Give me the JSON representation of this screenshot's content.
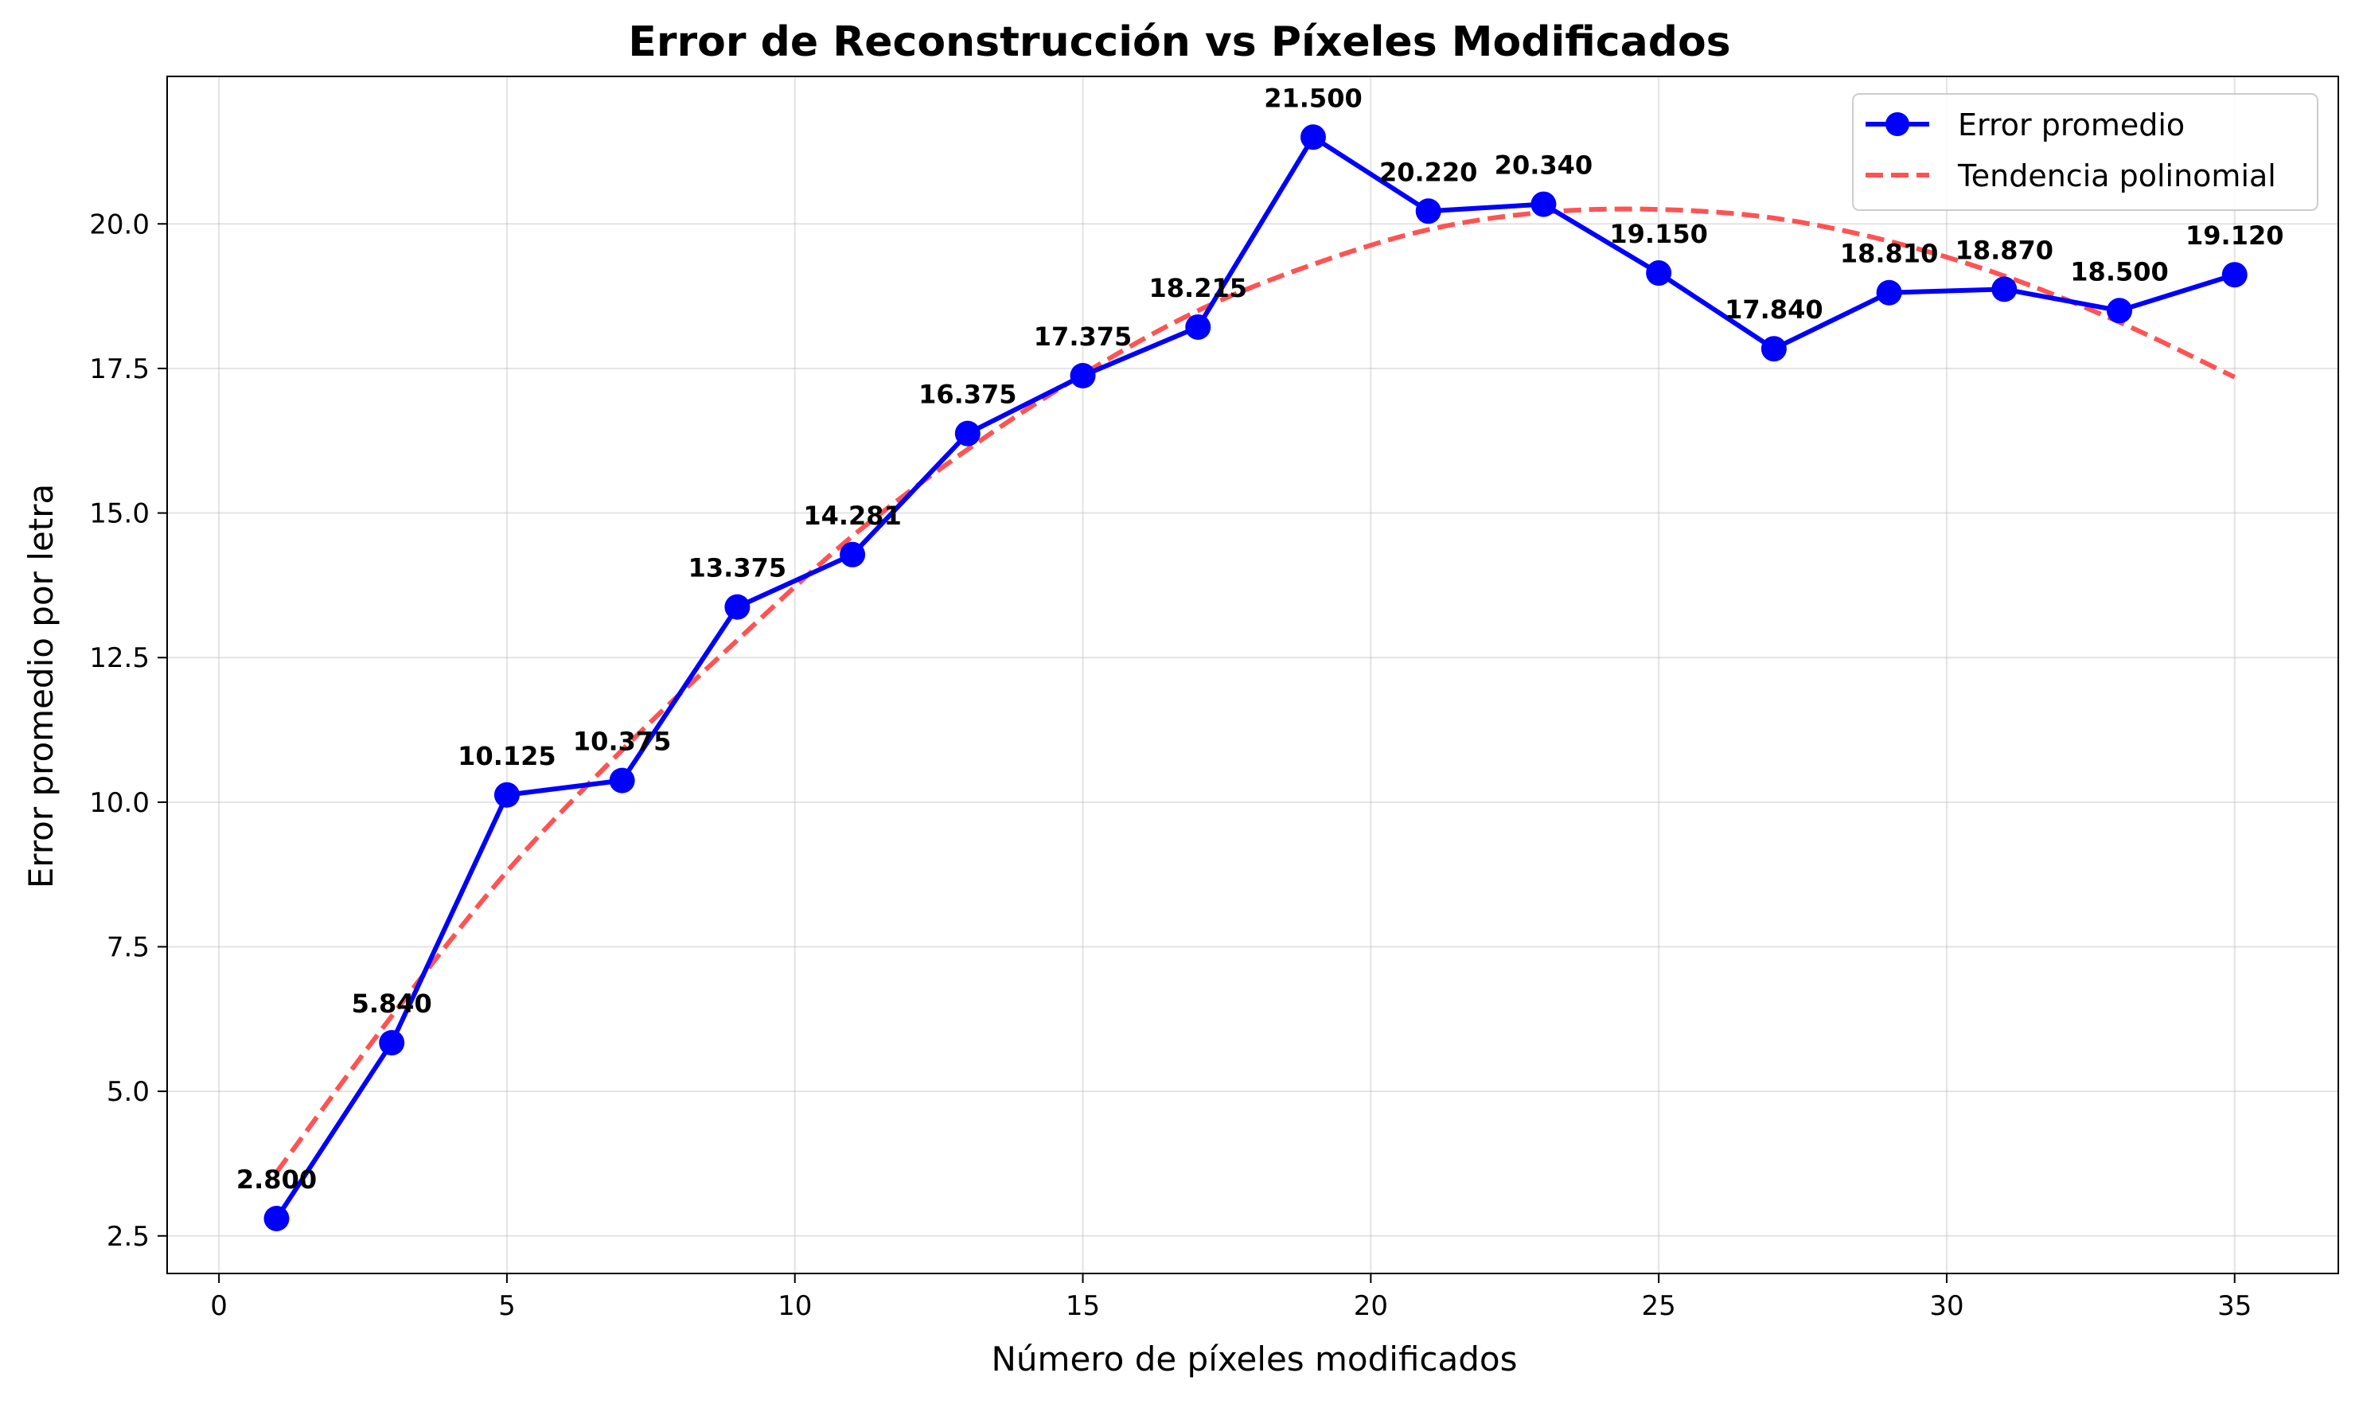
{
  "chart_data": {
    "type": "line",
    "title": "Error de Reconstrucción vs Píxeles Modificados",
    "xlabel": "Número de píxeles modificados",
    "ylabel": "Error promedio por letra",
    "xlim": [
      -0.9,
      36.8
    ],
    "ylim": [
      1.85,
      22.55
    ],
    "x_ticks": [
      0,
      5,
      10,
      15,
      20,
      25,
      30,
      35
    ],
    "y_ticks": [
      2.5,
      5.0,
      7.5,
      10.0,
      12.5,
      15.0,
      17.5,
      20.0
    ],
    "y_tick_labels": [
      "2.5",
      "5.0",
      "7.5",
      "10.0",
      "12.5",
      "15.0",
      "17.5",
      "20.0"
    ],
    "grid": true,
    "legend_position": "top-right",
    "series": [
      {
        "name": "Error promedio",
        "style": "solid line with circle markers",
        "color": "#0000ff",
        "x": [
          1,
          3,
          5,
          7,
          9,
          11,
          13,
          15,
          17,
          19,
          21,
          23,
          25,
          27,
          29,
          31,
          33,
          35
        ],
        "values": [
          2.8,
          5.84,
          10.125,
          10.375,
          13.375,
          14.281,
          16.375,
          17.375,
          18.215,
          21.5,
          20.22,
          20.34,
          19.15,
          17.84,
          18.81,
          18.87,
          18.5,
          19.12
        ],
        "labels": [
          "2.800",
          "5.840",
          "10.125",
          "10.375",
          "13.375",
          "14.281",
          "16.375",
          "17.375",
          "18.215",
          "21.500",
          "20.220",
          "20.340",
          "19.150",
          "17.840",
          "18.810",
          "18.870",
          "18.500",
          "19.120"
        ]
      },
      {
        "name": "Tendencia polinomial",
        "style": "dashed",
        "color": "#ff4040",
        "x": [
          1,
          3,
          5,
          7,
          9,
          11,
          13,
          15,
          17,
          19,
          21,
          23,
          25,
          27,
          29,
          31,
          33,
          35
        ],
        "values": [
          3.6,
          6.3,
          8.8,
          10.9,
          12.8,
          14.6,
          16.1,
          17.4,
          18.5,
          19.3,
          19.9,
          20.2,
          20.25,
          20.1,
          19.7,
          19.1,
          18.3,
          17.35
        ]
      }
    ]
  }
}
